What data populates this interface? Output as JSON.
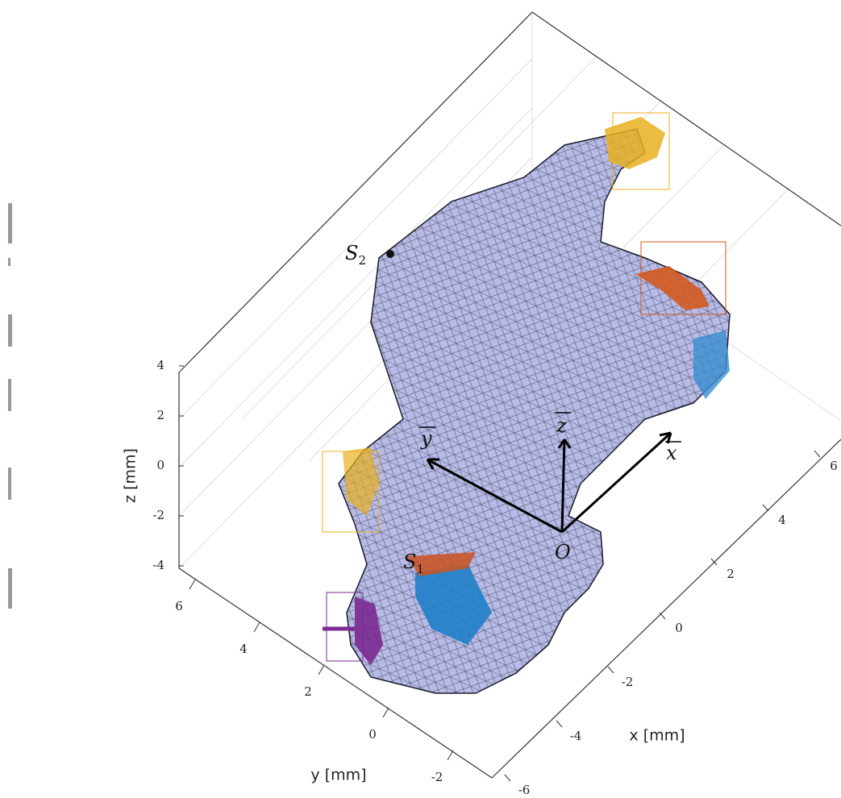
{
  "chart_data": {
    "type": "mesh3d",
    "axes": {
      "x": {
        "label": "x [mm]",
        "ticks": [
          -6,
          -4,
          -2,
          0,
          2,
          4,
          6
        ]
      },
      "y": {
        "label": "y [mm]",
        "ticks": [
          -2,
          0,
          2,
          4,
          6
        ]
      },
      "z": {
        "label": "z [mm]",
        "ticks": [
          -4,
          -2,
          0,
          2,
          4
        ]
      }
    },
    "annotations": {
      "s2": {
        "base": "S",
        "sub": "2"
      },
      "s1": {
        "base": "S",
        "sub": "1"
      },
      "origin": "O",
      "vx": "x",
      "vy": "y",
      "vz": "z"
    },
    "grid": true
  }
}
